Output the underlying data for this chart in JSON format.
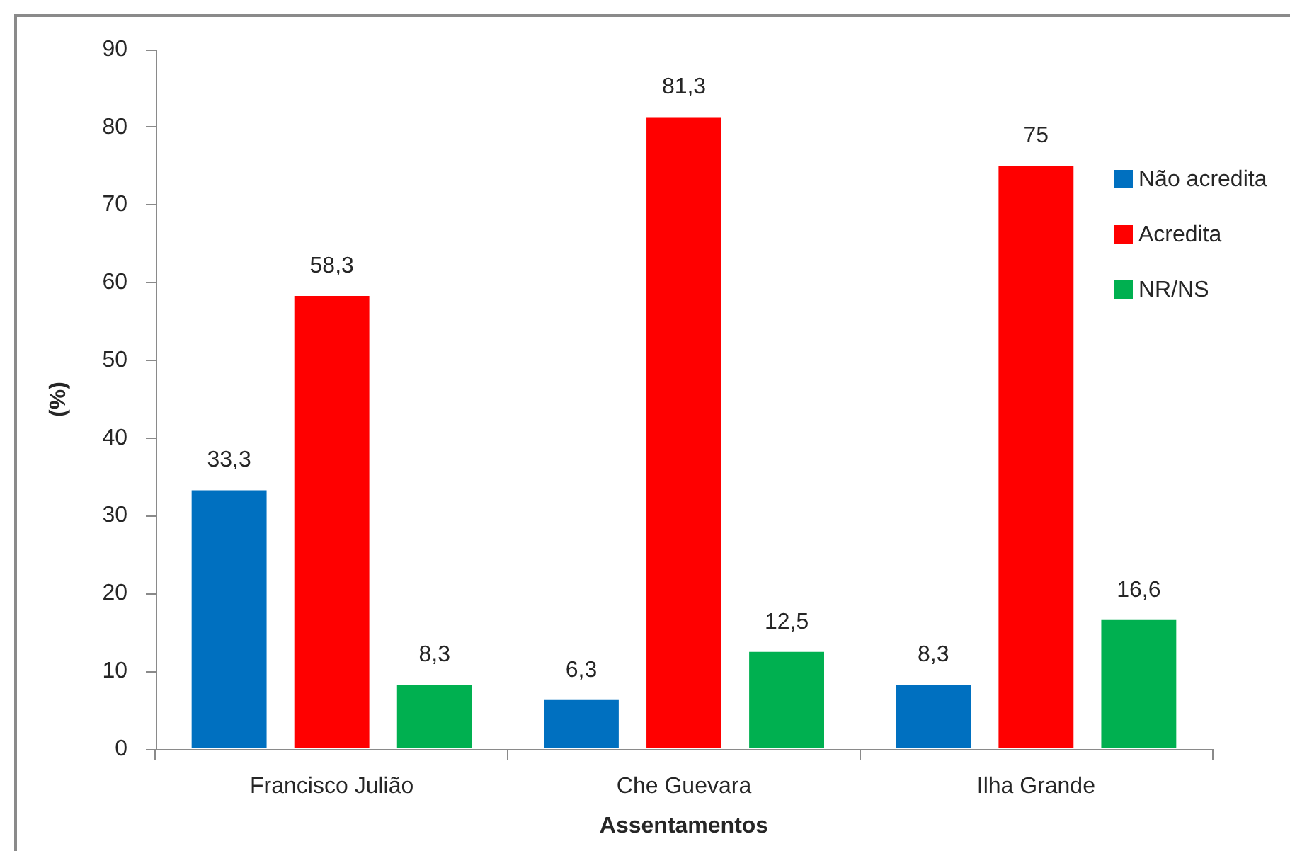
{
  "chart_data": {
    "type": "bar",
    "xlabel": "Assentamentos",
    "ylabel": "(%)",
    "categories": [
      "Francisco Julião",
      "Che Guevara",
      "Ilha Grande"
    ],
    "series": [
      {
        "name": "Não acredita",
        "color": "#0070c0",
        "values": [
          33.3,
          6.3,
          8.3
        ],
        "value_labels": [
          "33,3",
          "6,3",
          "8,3"
        ]
      },
      {
        "name": "Acredita",
        "color": "#ff0000",
        "values": [
          58.3,
          81.3,
          75
        ],
        "value_labels": [
          "58,3",
          "81,3",
          "75"
        ]
      },
      {
        "name": "NR/NS",
        "color": "#00b050",
        "values": [
          8.3,
          12.5,
          16.6
        ],
        "value_labels": [
          "8,3",
          "12,5",
          "16,6"
        ]
      }
    ],
    "ylim": [
      0,
      90
    ],
    "yticks": [
      0,
      10,
      20,
      30,
      40,
      50,
      60,
      70,
      80,
      90
    ],
    "grid": false,
    "legend": "top right"
  }
}
